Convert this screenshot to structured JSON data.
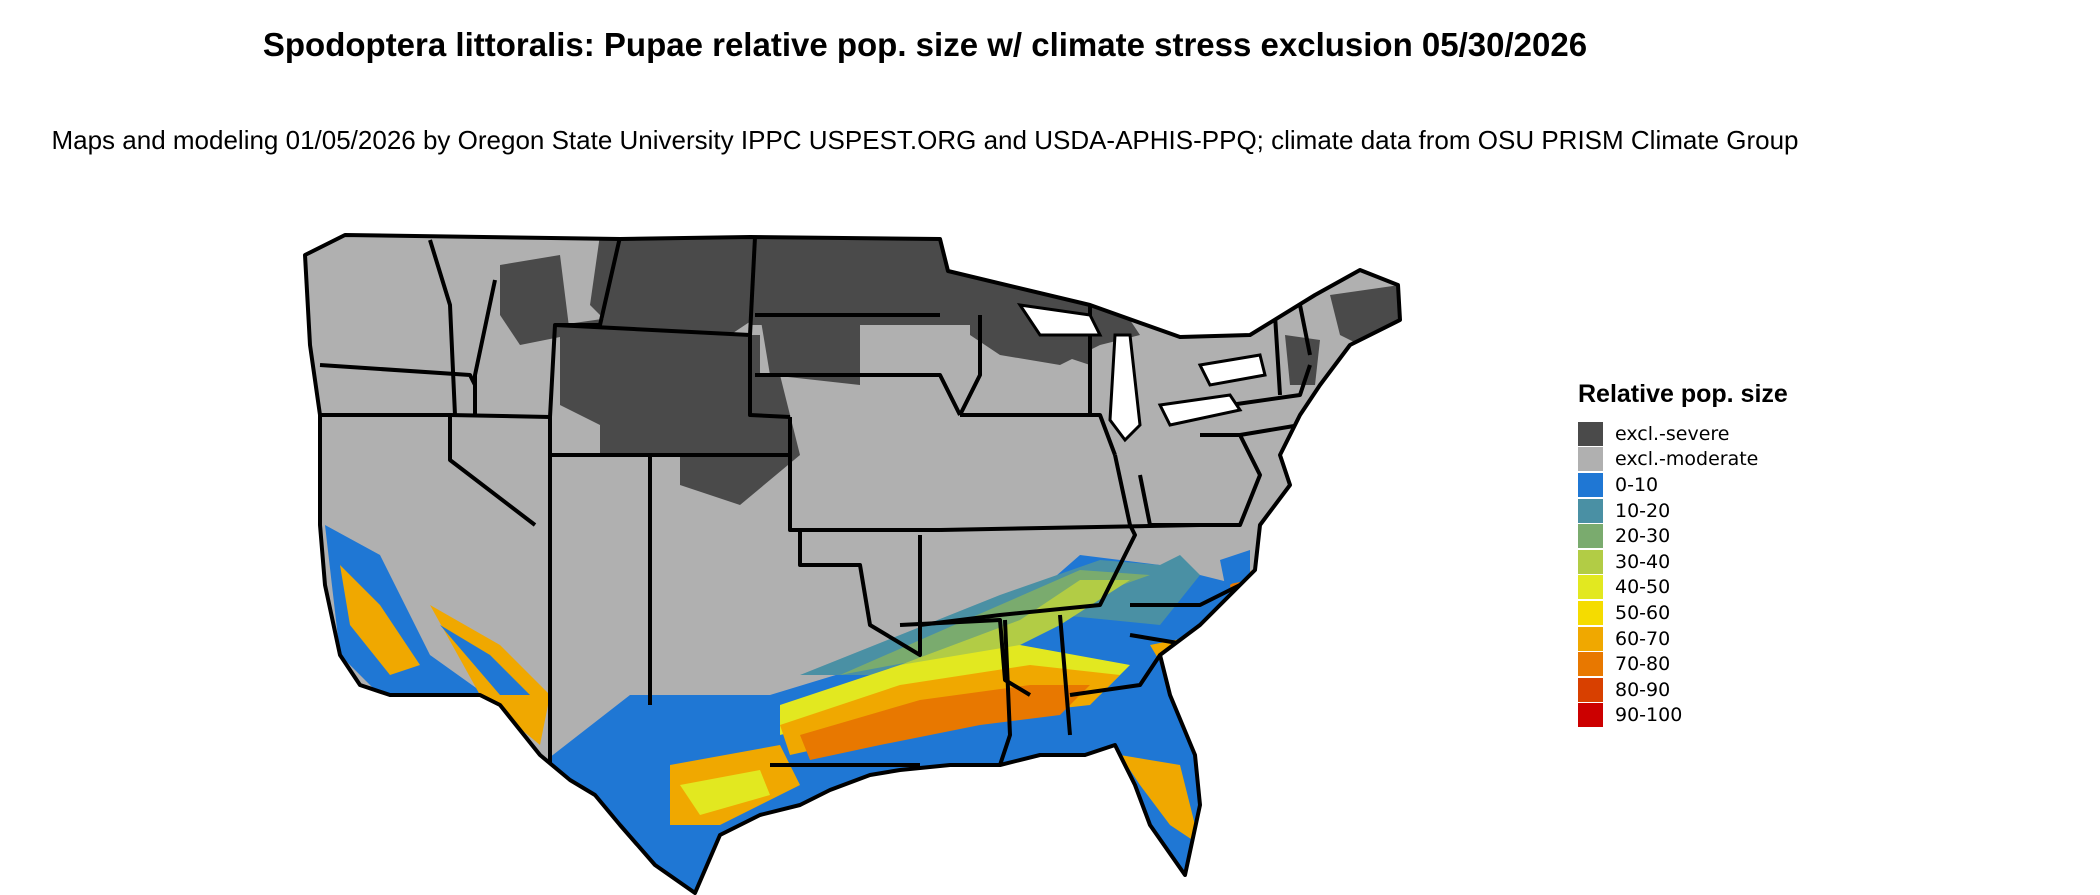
{
  "title": "Spodoptera littoralis: Pupae relative pop. size w/ climate stress exclusion 05/30/2026",
  "subtitle": "Maps and modeling 01/05/2026 by Oregon State University IPPC USPEST.ORG and USDA-APHIS-PPQ; climate data from OSU PRISM Climate Group",
  "legend": {
    "title": "Relative pop. size",
    "items": [
      {
        "label": "excl.-severe",
        "color": "#4a4a4a"
      },
      {
        "label": "excl.-moderate",
        "color": "#b0b0b0"
      },
      {
        "label": "0-10",
        "color": "#1f77d4"
      },
      {
        "label": "10-20",
        "color": "#4a90a4"
      },
      {
        "label": "20-30",
        "color": "#7aab6e"
      },
      {
        "label": "30-40",
        "color": "#b2cc45"
      },
      {
        "label": "40-50",
        "color": "#e2e820"
      },
      {
        "label": "50-60",
        "color": "#f5dc00"
      },
      {
        "label": "60-70",
        "color": "#f0a800"
      },
      {
        "label": "70-80",
        "color": "#e87800"
      },
      {
        "label": "80-90",
        "color": "#d84000"
      },
      {
        "label": "90-100",
        "color": "#cc0000"
      }
    ]
  }
}
